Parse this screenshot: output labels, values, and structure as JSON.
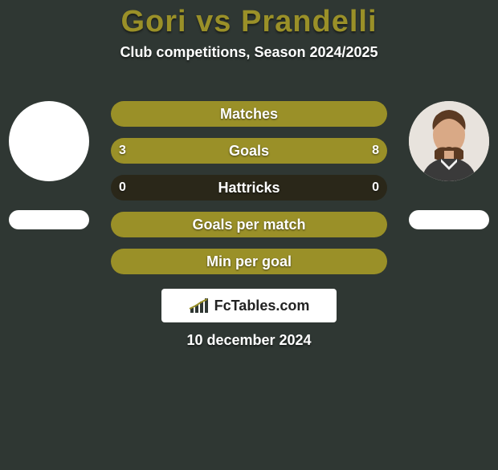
{
  "background_color": "#2f3733",
  "title": {
    "text": "Gori vs Prandelli",
    "fontsize": 38,
    "color": "#9a9028"
  },
  "subtitle": {
    "text": "Club competitions, Season 2024/2025",
    "fontsize": 18,
    "color": "#ffffff"
  },
  "players": {
    "left": {
      "avatar_bg": "#ffffff",
      "has_photo": false
    },
    "right": {
      "avatar_bg": "#e8e3dd",
      "has_photo": true
    }
  },
  "bars": {
    "track_color": "#2a2719",
    "fill_color": "#9a9028",
    "label_color": "#ffffff",
    "value_color": "#ffffff",
    "label_fontsize": 18,
    "value_fontsize": 16,
    "items": [
      {
        "label": "Matches",
        "left_val": "",
        "right_val": "",
        "left_pct": 50,
        "right_pct": 50
      },
      {
        "label": "Goals",
        "left_val": "3",
        "right_val": "8",
        "left_pct": 27,
        "right_pct": 73
      },
      {
        "label": "Hattricks",
        "left_val": "0",
        "right_val": "0",
        "left_pct": 0,
        "right_pct": 0
      },
      {
        "label": "Goals per match",
        "left_val": "",
        "right_val": "",
        "left_pct": 50,
        "right_pct": 50
      },
      {
        "label": "Min per goal",
        "left_val": "",
        "right_val": "",
        "left_pct": 50,
        "right_pct": 50
      }
    ]
  },
  "brand": {
    "text": "FcTables.com",
    "fontsize": 18
  },
  "date": {
    "text": "10 december 2024",
    "fontsize": 18,
    "color": "#ffffff"
  }
}
